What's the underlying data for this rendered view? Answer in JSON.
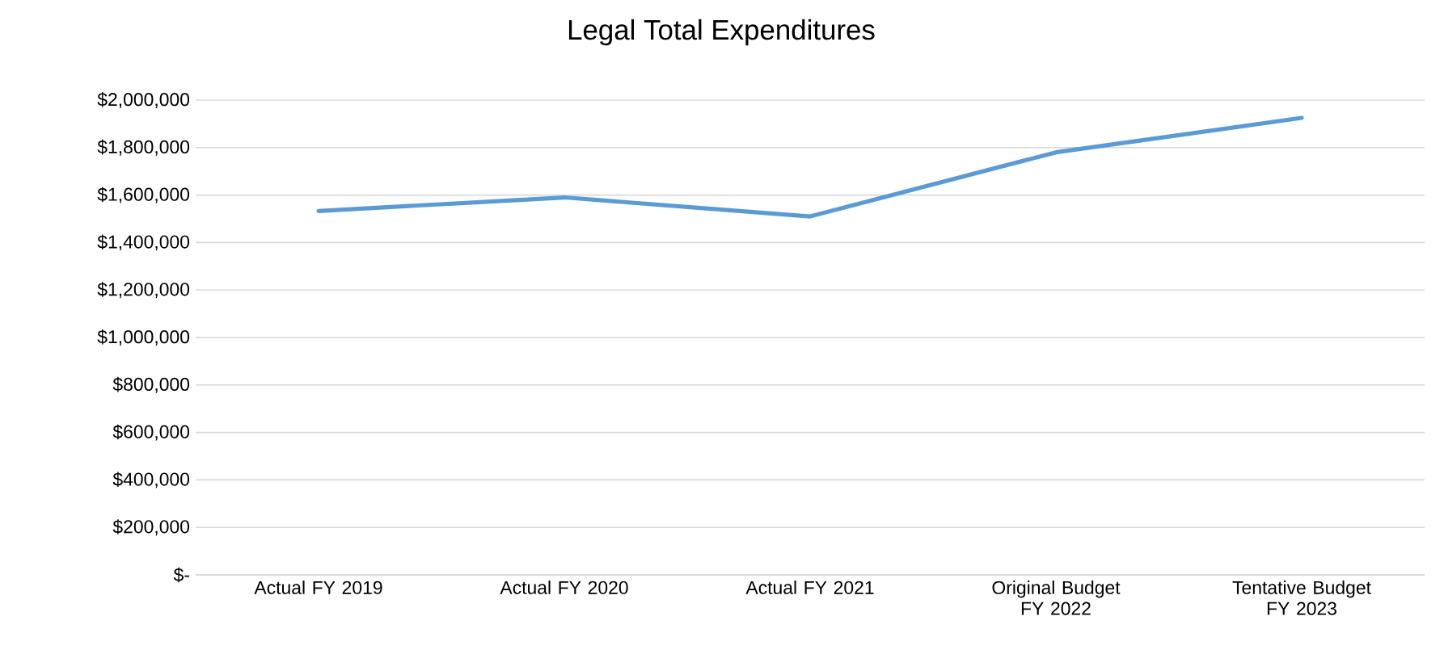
{
  "chart_data": {
    "type": "line",
    "title": "Legal Total Expenditures",
    "categories": [
      "Actual FY 2019",
      "Actual FY 2020",
      "Actual FY 2021",
      "Original Budget FY 2022",
      "Tentative Budget FY 2023"
    ],
    "series": [
      {
        "color": "#5b9bd5",
        "values": [
          1533000,
          1590000,
          1510000,
          1780000,
          1925000
        ]
      }
    ],
    "ylim": [
      0,
      2000000
    ],
    "yticks": [
      {
        "value": 0,
        "label": "$-"
      },
      {
        "value": 200000,
        "label": "$200,000"
      },
      {
        "value": 400000,
        "label": "$400,000"
      },
      {
        "value": 600000,
        "label": "$600,000"
      },
      {
        "value": 800000,
        "label": "$800,000"
      },
      {
        "value": 1000000,
        "label": "$1,000,000"
      },
      {
        "value": 1200000,
        "label": "$1,200,000"
      },
      {
        "value": 1400000,
        "label": "$1,400,000"
      },
      {
        "value": 1600000,
        "label": "$1,600,000"
      },
      {
        "value": 1800000,
        "label": "$1,800,000"
      },
      {
        "value": 2000000,
        "label": "$2,000,000"
      }
    ],
    "grid": "y",
    "marker": "none",
    "line_style": "solid"
  }
}
